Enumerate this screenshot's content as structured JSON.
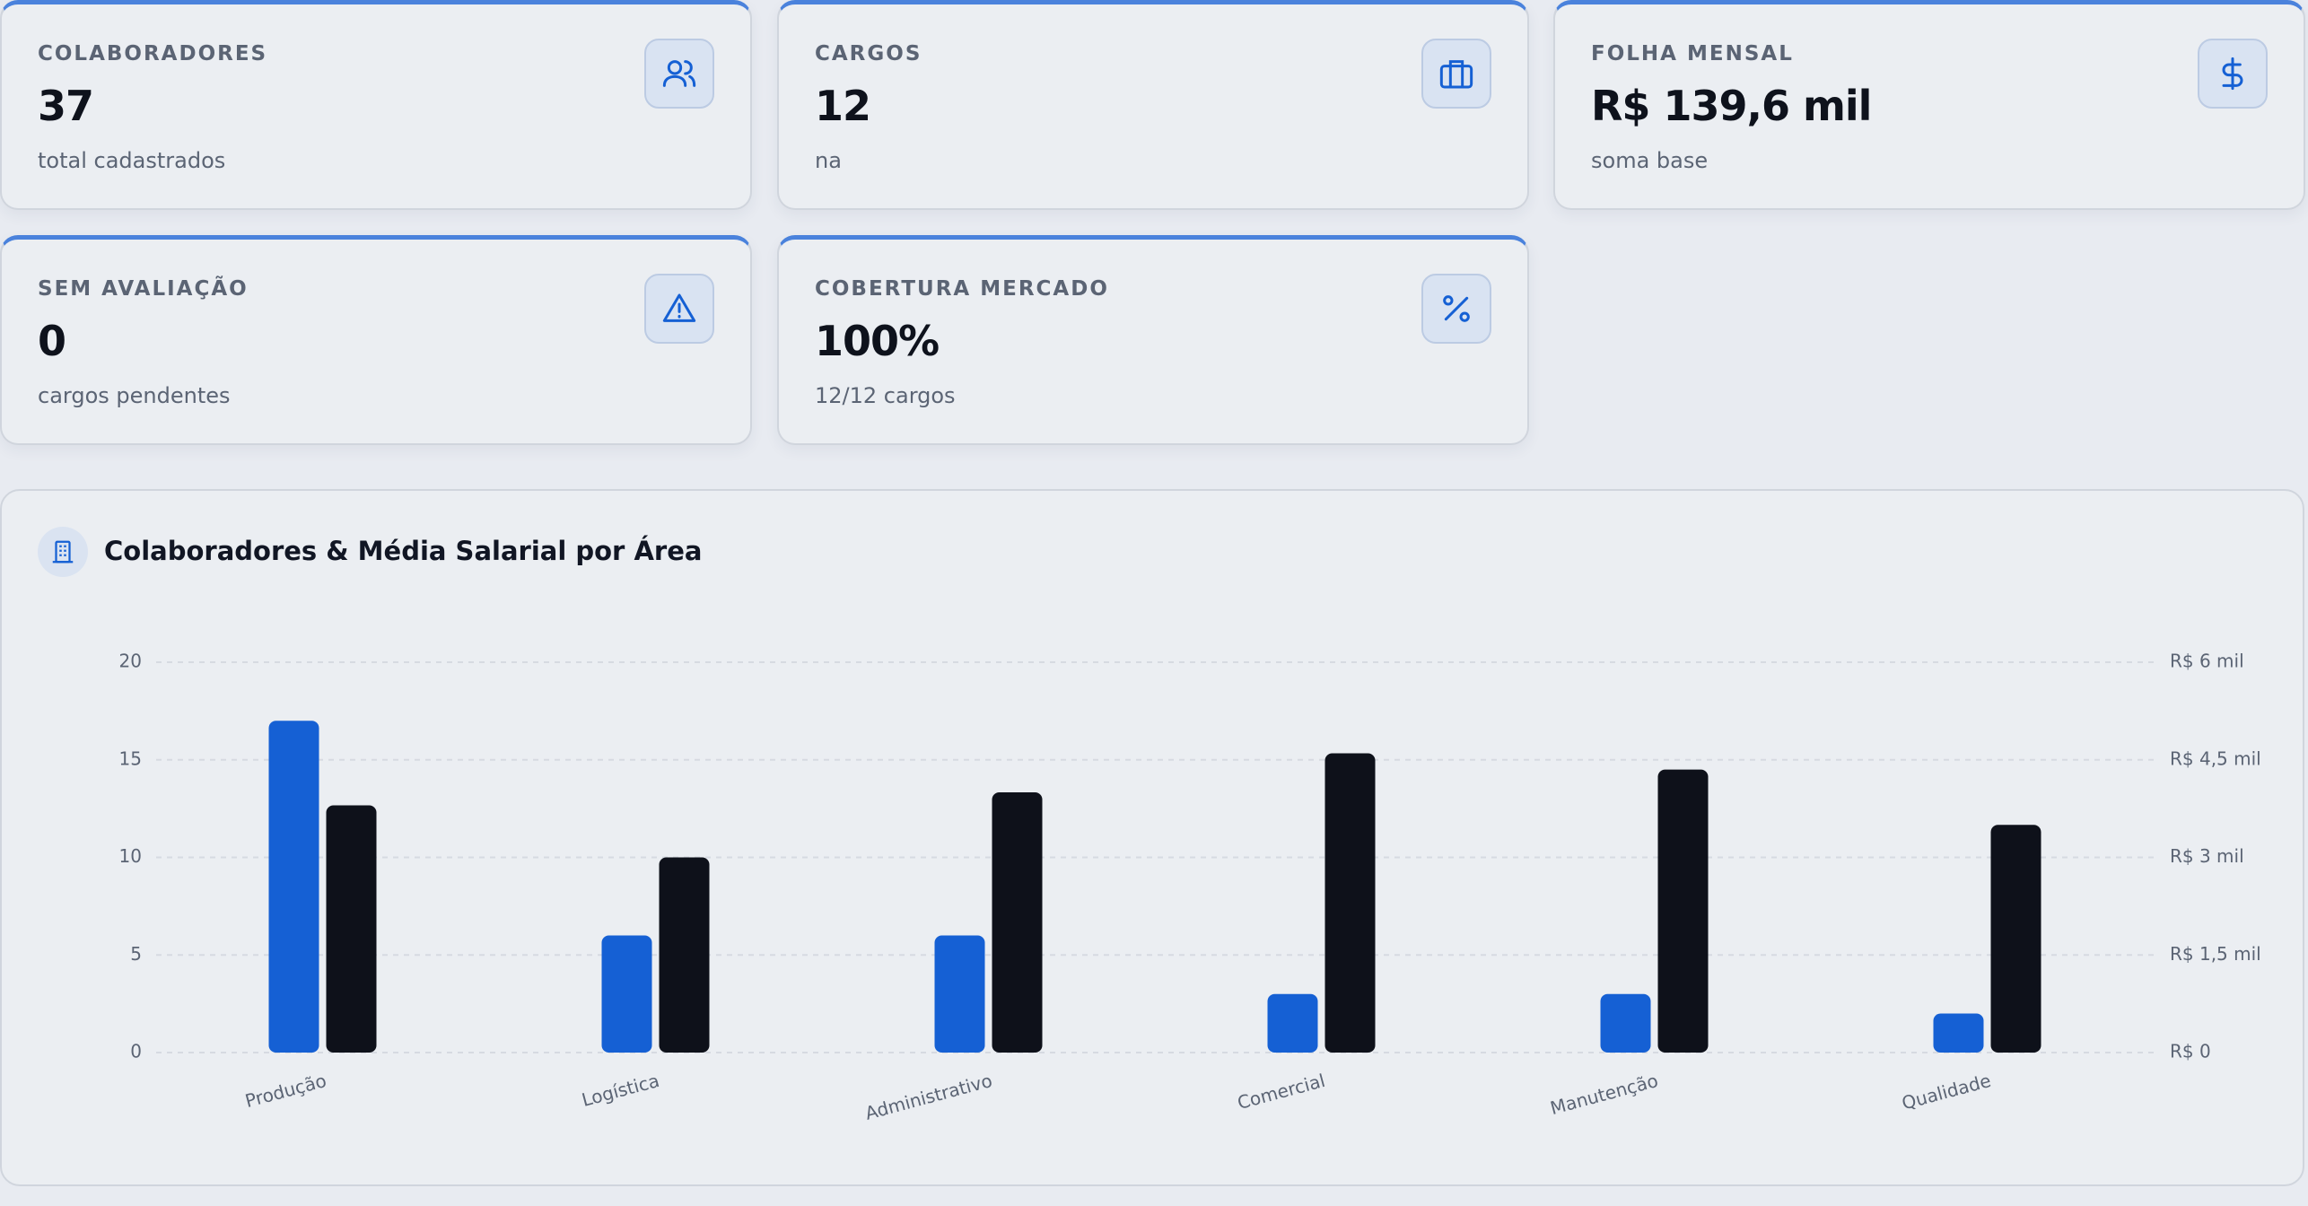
{
  "cards": [
    {
      "label": "COLABORADORES",
      "value": "37",
      "note": "total cadastrados"
    },
    {
      "label": "CARGOS",
      "value": "12",
      "note": "na"
    },
    {
      "label": "FOLHA MENSAL",
      "value": "R$ 139,6 mil",
      "note": "soma base"
    },
    {
      "label": "SEM AVALIAÇÃO",
      "value": "0",
      "note": "cargos pendentes"
    },
    {
      "label": "COBERTURA MERCADO",
      "value": "100%",
      "note": "12/12 cargos"
    }
  ],
  "chart_data": {
    "type": "bar",
    "title": "Colaboradores & Média Salarial por Área",
    "categories": [
      "Produção",
      "Logística",
      "Administrativo",
      "Comercial",
      "Manutenção",
      "Qualidade"
    ],
    "series": [
      {
        "color": "#1560d4",
        "values": [
          17,
          6,
          6,
          3,
          3,
          2
        ]
      },
      {
        "color": "#0e111a",
        "axis": "y2",
        "values": [
          3800,
          3000,
          4000,
          4600,
          4350,
          3500
        ]
      }
    ],
    "ylim": [
      0,
      20
    ],
    "yticks": [
      0,
      5,
      10,
      15,
      20
    ],
    "y2lim": [
      0,
      6000
    ],
    "y2ticks": [
      {
        "value": 0,
        "label": "R$ 0"
      },
      {
        "value": 1500,
        "label": "R$ 1,5 mil"
      },
      {
        "value": 3000,
        "label": "R$ 3 mil"
      },
      {
        "value": 4500,
        "label": "R$ 4,5 mil"
      },
      {
        "value": 6000,
        "label": "R$ 6 mil"
      }
    ],
    "grid": true
  }
}
